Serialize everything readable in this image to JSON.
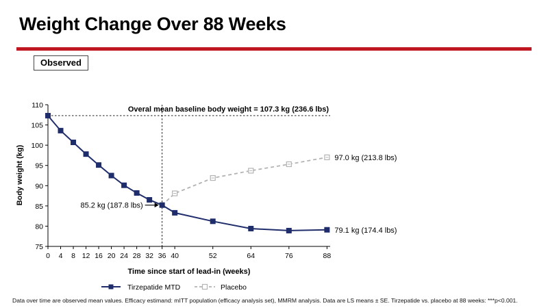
{
  "header": {
    "title": "Weight Change Over 88 Weeks",
    "tag": "Observed"
  },
  "colors": {
    "tirzepatide": "#1f2d6b",
    "placebo": "#b3b3b3",
    "accent_bar": "#c0161f"
  },
  "chart_data": {
    "type": "line",
    "xlabel": "Time since start of lead-in (weeks)",
    "ylabel": "Body weight (kg)",
    "xlim": [
      0,
      89
    ],
    "ylim": [
      75,
      110
    ],
    "xticks": [
      0,
      4,
      8,
      12,
      16,
      20,
      24,
      28,
      32,
      36,
      40,
      52,
      64,
      76,
      88
    ],
    "yticks": [
      75,
      80,
      85,
      90,
      95,
      100,
      105,
      110
    ],
    "reference_line": {
      "y": 107.3,
      "label": "Overal mean baseline body weight = 107.3 kg (236.6 lbs)"
    },
    "vertical_line": {
      "x": 36
    },
    "series": [
      {
        "name": "Tirzepatide MTD",
        "style": "solid",
        "marker": "square-filled",
        "x": [
          0,
          4,
          8,
          12,
          16,
          20,
          24,
          28,
          32,
          36,
          40,
          52,
          64,
          76,
          88
        ],
        "values": [
          107.3,
          103.6,
          100.7,
          97.8,
          95.1,
          92.5,
          90.1,
          88.2,
          86.5,
          85.2,
          83.3,
          81.2,
          79.4,
          78.9,
          79.1
        ]
      },
      {
        "name": "Placebo",
        "style": "dashed",
        "marker": "square-open",
        "x": [
          36,
          40,
          52,
          64,
          76,
          88
        ],
        "values": [
          85.2,
          88.1,
          91.9,
          93.7,
          95.3,
          97.0
        ]
      }
    ],
    "annotations": [
      {
        "label": "85.2 kg (187.8 lbs)",
        "x": 36,
        "y": 85.2
      },
      {
        "label": "97.0 kg (213.8 lbs)",
        "x": 88,
        "y": 97.0
      },
      {
        "label": "79.1 kg (174.4 lbs)",
        "x": 88,
        "y": 79.1
      }
    ]
  },
  "footnote": "Data over time are observed mean values. Efficacy estimand: mITT population (efficacy analysis set), MMRM analysis. Data are LS means ± SE. Tirzepatide vs. placebo at 88 weeks: ***p<0.001."
}
